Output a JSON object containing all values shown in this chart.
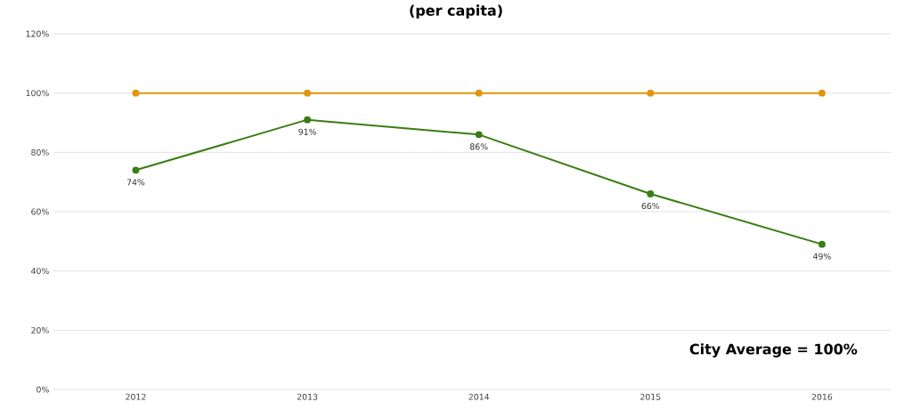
{
  "chart_data": {
    "type": "line",
    "title": "(per capita)",
    "categories": [
      "2012",
      "2013",
      "2014",
      "2015",
      "2016"
    ],
    "series": [
      {
        "color": "#e0960c",
        "values": [
          100,
          100,
          100,
          100,
          100
        ]
      },
      {
        "color": "#3a7d14",
        "values": [
          74,
          91,
          86,
          66,
          49
        ],
        "value_labels": [
          "74%",
          "91%",
          "86%",
          "66%",
          "49%"
        ]
      }
    ],
    "ylim": [
      0,
      120
    ],
    "yticks": [
      {
        "value": 0,
        "label": "0%"
      },
      {
        "value": 20,
        "label": "20%"
      },
      {
        "value": 40,
        "label": "40%"
      },
      {
        "value": 60,
        "label": "60%"
      },
      {
        "value": 80,
        "label": "80%"
      },
      {
        "value": 100,
        "label": "100%"
      },
      {
        "value": 120,
        "label": "120%"
      }
    ],
    "grid": "y",
    "marker": "circle",
    "line_style": "solid",
    "annotations": [
      "City Average = 100%"
    ]
  }
}
